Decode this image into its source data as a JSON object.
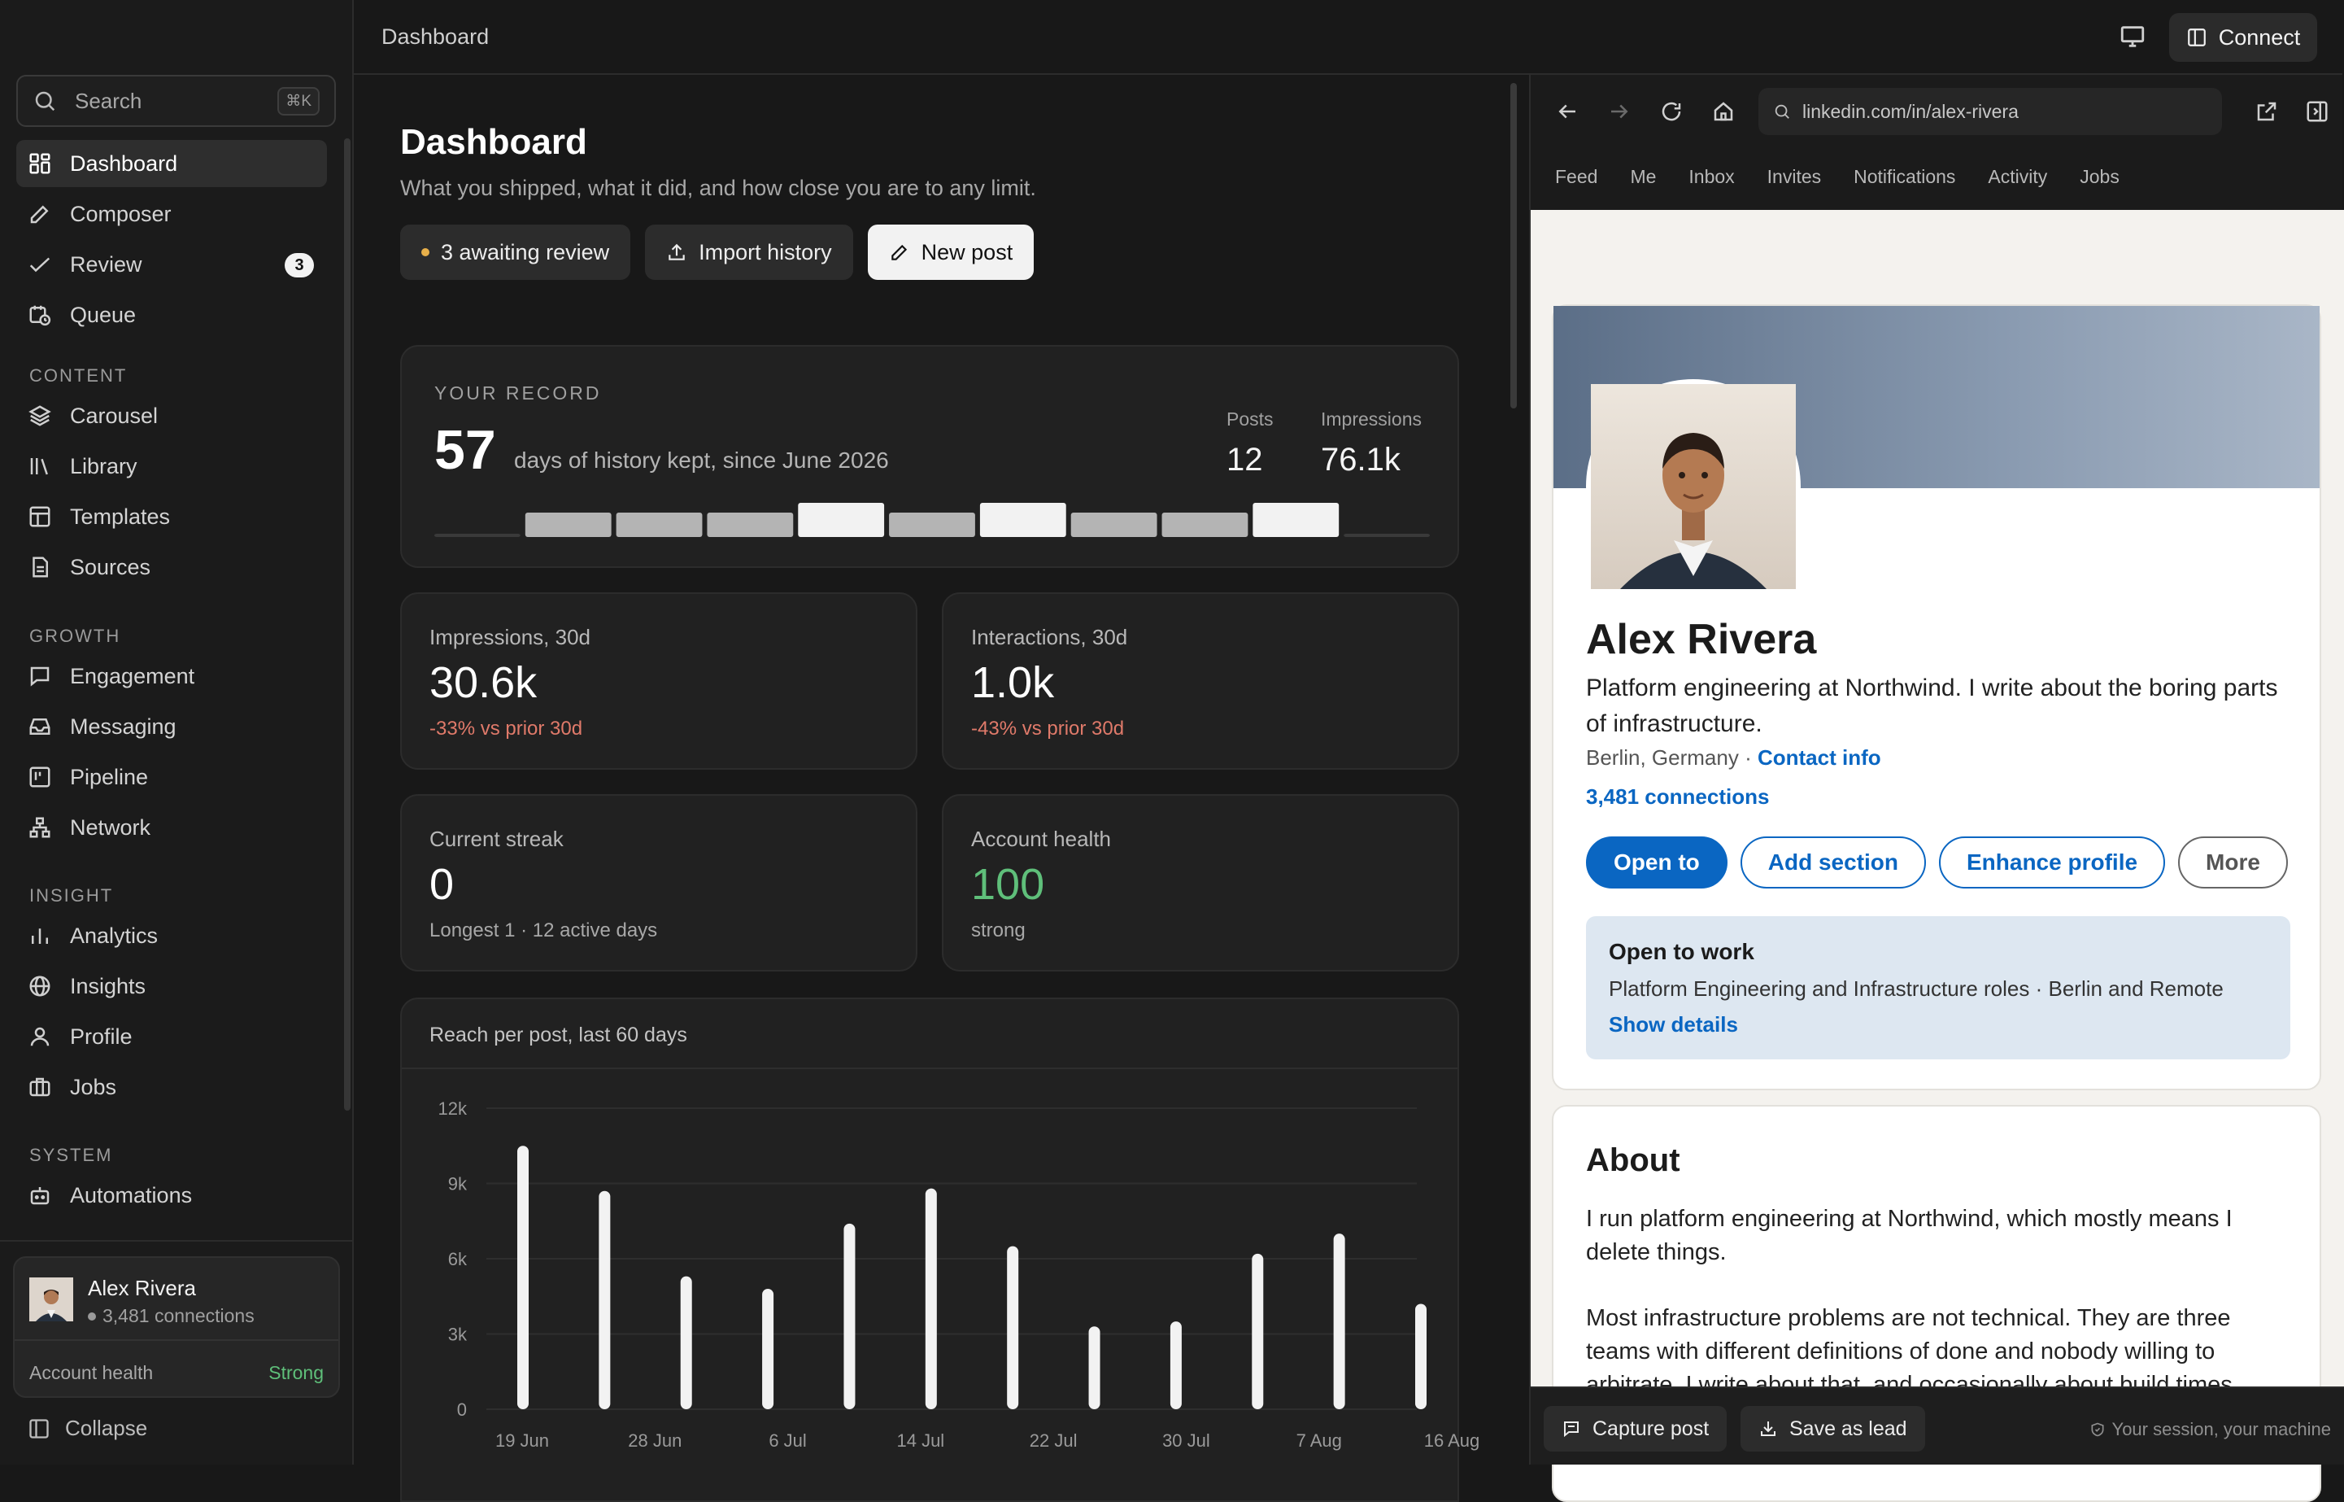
{
  "topbar": {
    "title": "Dashboard",
    "connect_label": "Connect"
  },
  "sidebar": {
    "search_placeholder": "Search",
    "search_shortcut": "⌘K",
    "primary": [
      {
        "label": "Dashboard",
        "icon": "dashboard-icon",
        "active": true
      },
      {
        "label": "Composer",
        "icon": "pen-icon"
      },
      {
        "label": "Review",
        "icon": "check-icon",
        "badge": "3"
      },
      {
        "label": "Queue",
        "icon": "calendar-clock-icon"
      }
    ],
    "sections": [
      {
        "title": "CONTENT",
        "items": [
          {
            "label": "Carousel",
            "icon": "layers-icon"
          },
          {
            "label": "Library",
            "icon": "library-icon"
          },
          {
            "label": "Templates",
            "icon": "template-icon"
          },
          {
            "label": "Sources",
            "icon": "document-icon"
          }
        ]
      },
      {
        "title": "GROWTH",
        "items": [
          {
            "label": "Engagement",
            "icon": "chat-icon"
          },
          {
            "label": "Messaging",
            "icon": "inbox-icon"
          },
          {
            "label": "Pipeline",
            "icon": "kanban-icon"
          },
          {
            "label": "Network",
            "icon": "network-icon"
          }
        ]
      },
      {
        "title": "INSIGHT",
        "items": [
          {
            "label": "Analytics",
            "icon": "bar-chart-icon"
          },
          {
            "label": "Insights",
            "icon": "globe-icon"
          },
          {
            "label": "Profile",
            "icon": "user-icon"
          },
          {
            "label": "Jobs",
            "icon": "briefcase-icon"
          }
        ]
      },
      {
        "title": "SYSTEM",
        "items": [
          {
            "label": "Automations",
            "icon": "robot-icon"
          }
        ]
      }
    ],
    "user": {
      "name": "Alex Rivera",
      "connections": "3,481 connections",
      "health_label": "Account health",
      "health_value": "Strong"
    },
    "collapse_label": "Collapse"
  },
  "main": {
    "title": "Dashboard",
    "subtitle": "What you shipped, what it did, and how close you are to any limit.",
    "buttons": {
      "review": "3 awaiting review",
      "import": "Import history",
      "new_post": "New post"
    },
    "record": {
      "label": "YOUR RECORD",
      "days": "57",
      "desc": "days of history kept, since June 2026",
      "posts_label": "Posts",
      "posts_value": "12",
      "impressions_label": "Impressions",
      "impressions_value": "76.1k",
      "weekly_activity": [
        0,
        1,
        1,
        1,
        2,
        1,
        2,
        1,
        1,
        2,
        0
      ]
    },
    "stats": [
      {
        "label": "Impressions, 30d",
        "value": "30.6k",
        "delta": "-33% vs prior 30d",
        "tone": "neg"
      },
      {
        "label": "Interactions, 30d",
        "value": "1.0k",
        "delta": "-43% vs prior 30d",
        "tone": "neg"
      },
      {
        "label": "Current streak",
        "value": "0",
        "delta": "Longest 1 · 12 active days",
        "tone": "muted"
      },
      {
        "label": "Account health",
        "value": "100",
        "delta": "strong",
        "tone": "muted",
        "value_color": "#5fbf7a"
      }
    ]
  },
  "chart_data": {
    "type": "bar",
    "title": "Reach per post, last 60 days",
    "xlabel": "",
    "ylabel": "",
    "ylim": [
      0,
      12000
    ],
    "y_ticks": [
      0,
      3000,
      6000,
      9000,
      12000
    ],
    "y_tick_labels": [
      "0",
      "3k",
      "6k",
      "9k",
      "12k"
    ],
    "x_tick_labels": [
      "19 Jun",
      "28 Jun",
      "6 Jul",
      "14 Jul",
      "22 Jul",
      "30 Jul",
      "7 Aug",
      "16 Aug"
    ],
    "values": [
      10500,
      8700,
      5300,
      4800,
      7400,
      8800,
      6500,
      3300,
      3500,
      6200,
      7000,
      4200
    ],
    "grid": true
  },
  "browser": {
    "url": "linkedin.com/in/alex-rivera",
    "tabs": [
      "Feed",
      "Me",
      "Inbox",
      "Invites",
      "Notifications",
      "Activity",
      "Jobs"
    ],
    "profile": {
      "name": "Alex Rivera",
      "headline": "Platform engineering at Northwind. I write about the boring parts of infrastructure.",
      "location": "Berlin, Germany ·",
      "contact": "Contact info",
      "connections": "3,481 connections",
      "buttons": [
        "Open to",
        "Add section",
        "Enhance profile",
        "More"
      ],
      "open_to_work": {
        "title": "Open to work",
        "desc": "Platform Engineering and Infrastructure roles · Berlin and Remote",
        "link": "Show details"
      },
      "about_title": "About",
      "about_p1": "I run platform engineering at Northwind, which mostly means I delete things.",
      "about_p2": "Most infrastructure problems are not technical. They are three teams with different definitions of done and nobody willing to arbitrate. I write about that, and occasionally about build times."
    },
    "bottom": {
      "capture": "Capture post",
      "save_lead": "Save as lead",
      "note": "Your session, your machine"
    }
  },
  "colors": {
    "accent_linkedin": "#0a66c2",
    "positive": "#5fbf7a",
    "negative": "#e07a6a",
    "review_dot": "#e8b04a"
  }
}
